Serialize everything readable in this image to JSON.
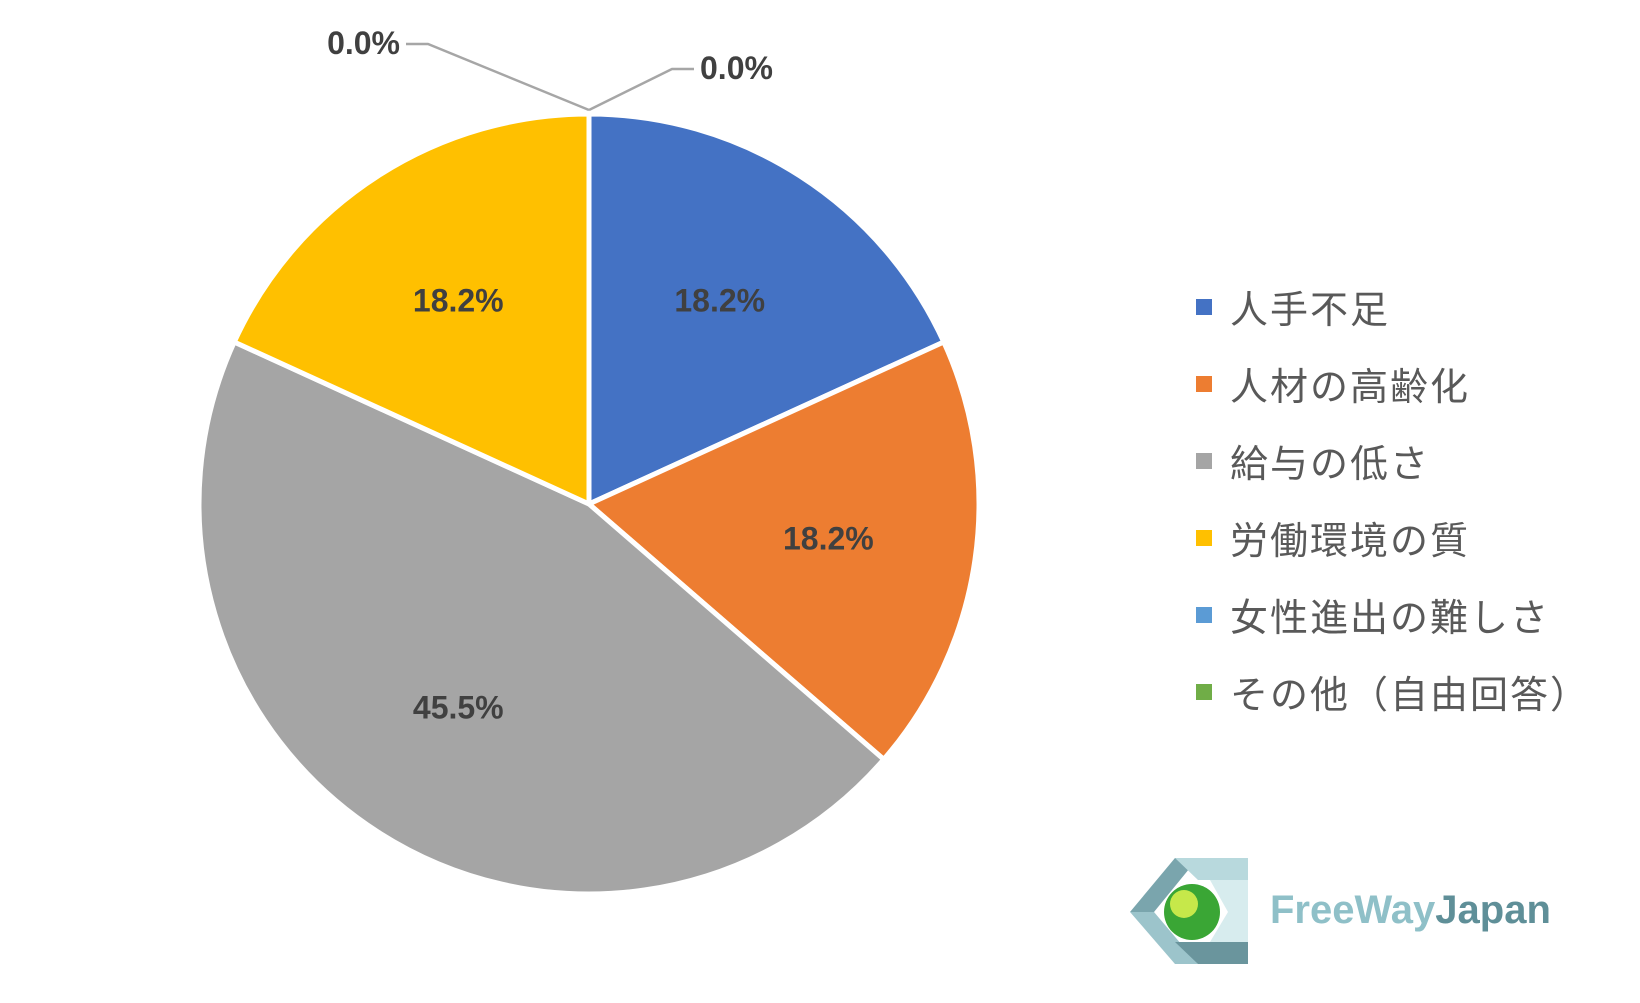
{
  "chart_data": {
    "type": "pie",
    "title": "",
    "categories": [
      "人手不足",
      "人材の高齢化",
      "給与の低さ",
      "労働環境の質",
      "女性進出の難しさ",
      "その他（自由回答）"
    ],
    "values": [
      18.2,
      18.2,
      45.5,
      18.2,
      0.0,
      0.0
    ],
    "labels": [
      "18.2%",
      "18.2%",
      "45.5%",
      "18.2%",
      "0.0%",
      "0.0%"
    ],
    "colors": [
      "#4472c4",
      "#ed7d31",
      "#a5a5a5",
      "#ffc000",
      "#5b9bd5",
      "#70ad47"
    ],
    "legend_position": "right"
  },
  "logo": {
    "word1": "FreeWay",
    "word2": "Japan",
    "icon": "freewayjapan-logo-icon"
  }
}
